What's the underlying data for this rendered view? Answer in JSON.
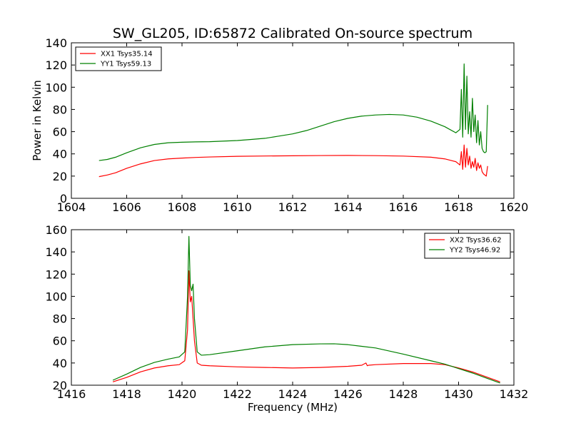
{
  "chart_data": [
    {
      "type": "line",
      "title": "SW_GL205, ID:65872 Calibrated On-source spectrum",
      "xlabel": "",
      "ylabel": "Power in Kelvin",
      "xlim": [
        1604,
        1620
      ],
      "ylim": [
        0,
        140
      ],
      "xticks": [
        "1604",
        "1606",
        "1608",
        "1610",
        "1612",
        "1614",
        "1616",
        "1618",
        "1620"
      ],
      "yticks": [
        "0",
        "20",
        "40",
        "60",
        "80",
        "100",
        "120",
        "140"
      ],
      "legend_position": "top-left",
      "grid": false,
      "series": [
        {
          "name": "XX1 Tsys35.14",
          "color": "#ff0000",
          "x": [
            1605.0,
            1605.3,
            1605.6,
            1606.0,
            1606.5,
            1607.0,
            1607.5,
            1608.0,
            1608.5,
            1609.0,
            1610.0,
            1611.0,
            1612.0,
            1613.0,
            1614.0,
            1615.0,
            1616.0,
            1617.0,
            1617.5,
            1617.9,
            1618.05,
            1618.1,
            1618.15,
            1618.2,
            1618.25,
            1618.3,
            1618.35,
            1618.4,
            1618.45,
            1618.5,
            1618.55,
            1618.6,
            1618.65,
            1618.7,
            1618.75,
            1618.8,
            1618.85,
            1618.9,
            1618.95,
            1619.0,
            1619.05
          ],
          "y": [
            19.5,
            21,
            23,
            27,
            31,
            34,
            35.5,
            36.2,
            36.8,
            37.2,
            37.8,
            38.1,
            38.3,
            38.5,
            38.6,
            38.4,
            38,
            37,
            35.5,
            33,
            30,
            42,
            26,
            48,
            28,
            45,
            30,
            38,
            27,
            33,
            28,
            36,
            25,
            32,
            27,
            30,
            24,
            22,
            21,
            20,
            29
          ]
        },
        {
          "name": "YY1 Tsys59.13",
          "color": "#008000",
          "x": [
            1605.0,
            1605.3,
            1605.6,
            1606.0,
            1606.5,
            1607.0,
            1607.5,
            1608.0,
            1608.5,
            1609.0,
            1610.0,
            1610.5,
            1611.0,
            1611.5,
            1612.0,
            1612.5,
            1613.0,
            1613.5,
            1614.0,
            1614.5,
            1615.0,
            1615.5,
            1616.0,
            1616.5,
            1617.0,
            1617.5,
            1617.9,
            1618.05,
            1618.1,
            1618.15,
            1618.2,
            1618.25,
            1618.3,
            1618.35,
            1618.4,
            1618.45,
            1618.5,
            1618.55,
            1618.6,
            1618.65,
            1618.7,
            1618.75,
            1618.8,
            1618.85,
            1618.9,
            1618.95,
            1619.0,
            1619.05
          ],
          "y": [
            34,
            35,
            37,
            41,
            45.5,
            48.5,
            50,
            50.5,
            50.8,
            51,
            52,
            53,
            54,
            56,
            58,
            61,
            65,
            69,
            72,
            74,
            75,
            75.5,
            75,
            73,
            69.5,
            64.5,
            59,
            62,
            98,
            55,
            121,
            62,
            110,
            58,
            78,
            55,
            90,
            60,
            75,
            50,
            70,
            48,
            60,
            45,
            42,
            41,
            42,
            84
          ]
        }
      ]
    },
    {
      "type": "line",
      "title": "",
      "xlabel": "Frequency (MHz)",
      "ylabel": "",
      "xlim": [
        1416,
        1432
      ],
      "ylim": [
        20,
        160
      ],
      "xticks": [
        "1416",
        "1418",
        "1420",
        "1422",
        "1424",
        "1426",
        "1428",
        "1430",
        "1432"
      ],
      "yticks": [
        "20",
        "40",
        "60",
        "80",
        "100",
        "120",
        "140",
        "160"
      ],
      "legend_position": "top-right",
      "grid": false,
      "series": [
        {
          "name": "XX2 Tsys36.62",
          "color": "#ff0000",
          "x": [
            1417.5,
            1418.0,
            1418.5,
            1419.0,
            1419.5,
            1419.9,
            1420.1,
            1420.2,
            1420.25,
            1420.3,
            1420.35,
            1420.4,
            1420.45,
            1420.55,
            1420.7,
            1421.0,
            1422.0,
            1423.0,
            1424.0,
            1425.0,
            1426.0,
            1426.5,
            1426.65,
            1426.7,
            1426.75,
            1427.0,
            1428.0,
            1429.0,
            1429.5,
            1430.0,
            1430.5,
            1431.0,
            1431.5
          ],
          "y": [
            23,
            27,
            32,
            35.5,
            37.5,
            38.5,
            42,
            70,
            123,
            95,
            100,
            80,
            60,
            40,
            38,
            37.5,
            36.5,
            36,
            35.5,
            36,
            37,
            38,
            40,
            37.5,
            38,
            38.5,
            39.5,
            39.5,
            38.5,
            35.5,
            32,
            27.5,
            23
          ]
        },
        {
          "name": "YY2 Tsys46.92",
          "color": "#008000",
          "x": [
            1417.5,
            1418.0,
            1418.5,
            1419.0,
            1419.5,
            1419.9,
            1420.1,
            1420.2,
            1420.25,
            1420.3,
            1420.35,
            1420.4,
            1420.45,
            1420.55,
            1420.7,
            1421.0,
            1422.0,
            1423.0,
            1424.0,
            1425.0,
            1425.5,
            1426.0,
            1426.5,
            1427.0,
            1428.0,
            1429.0,
            1429.5,
            1430.0,
            1430.5,
            1431.0,
            1431.5
          ],
          "y": [
            24.5,
            30,
            36,
            40.5,
            43.5,
            45.5,
            50,
            100,
            154,
            110,
            105,
            111,
            80,
            50,
            47,
            47.5,
            51,
            54.5,
            56.5,
            57.2,
            57.3,
            56.5,
            55,
            53.5,
            48,
            42,
            39,
            35,
            31,
            26.5,
            22
          ]
        }
      ]
    }
  ]
}
